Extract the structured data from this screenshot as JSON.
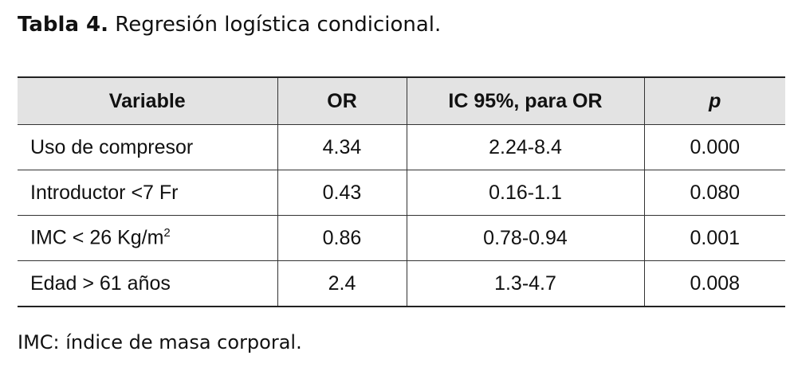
{
  "header": {
    "label": "Tabla 4.",
    "title": "Regresión logística condicional."
  },
  "table": {
    "columns": [
      "Variable",
      "OR",
      "IC 95%, para OR",
      "p"
    ],
    "rows": [
      [
        "Uso de compresor",
        "4.34",
        "2.24-8.4",
        "0.000"
      ],
      [
        "Introductor <7 Fr",
        "0.43",
        "0.16-1.1",
        "0.080"
      ],
      [
        {
          "text": "IMC < 26 Kg/m",
          "sup": "2"
        },
        "0.86",
        "0.78-0.94",
        "0.001"
      ],
      [
        "Edad > 61 años",
        "2.4",
        "1.3-4.7",
        "0.008"
      ]
    ]
  },
  "footnote": "IMC: índice de masa corporal."
}
